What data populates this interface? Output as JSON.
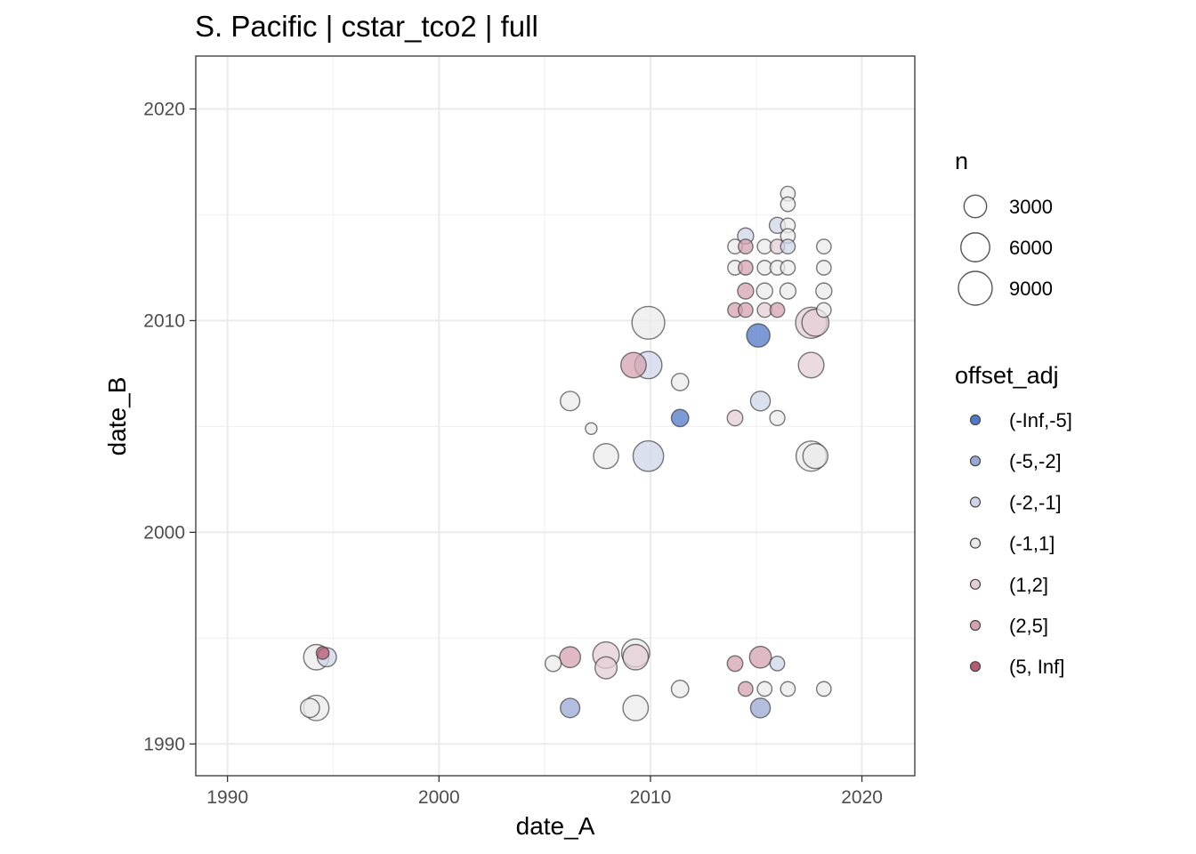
{
  "chart_data": {
    "type": "scatter",
    "title": "S. Pacific | cstar_tco2 | full",
    "xlabel": "date_A",
    "ylabel": "date_B",
    "xlim": [
      1988.5,
      2022.5
    ],
    "ylim": [
      1988.5,
      2022.5
    ],
    "x_ticks": [
      1990,
      2000,
      2010,
      2020
    ],
    "y_ticks": [
      1990,
      2000,
      2010,
      2020
    ],
    "grid": true,
    "legend_position": "right",
    "legend_size": {
      "title": "n",
      "entries": [
        {
          "label": "3000",
          "value": 3000
        },
        {
          "label": "6000",
          "value": 6000
        },
        {
          "label": "9000",
          "value": 9000
        }
      ]
    },
    "legend_color": {
      "title": "offset_adj",
      "entries": [
        {
          "label": "(-Inf,-5]",
          "color": "#4f78c8"
        },
        {
          "label": "(-5,-2]",
          "color": "#9aa8d3"
        },
        {
          "label": "(-2,-1]",
          "color": "#cfd5e8"
        },
        {
          "label": "(-1,1]",
          "color": "#ebebeb"
        },
        {
          "label": "(1,2]",
          "color": "#e4cfd6"
        },
        {
          "label": "(2,5]",
          "color": "#d4a3b0"
        },
        {
          "label": "(5, Inf]",
          "color": "#b45a72"
        }
      ]
    },
    "points": [
      {
        "x": 1994.2,
        "y": 1994.1,
        "n": 4200,
        "cls": "(-1,1]"
      },
      {
        "x": 1994.7,
        "y": 1994.1,
        "n": 1800,
        "cls": "(-2,-1]"
      },
      {
        "x": 1994.5,
        "y": 1994.3,
        "n": 400,
        "cls": "(5, Inf]"
      },
      {
        "x": 1994.2,
        "y": 1991.7,
        "n": 4200,
        "cls": "(-1,1]"
      },
      {
        "x": 1993.9,
        "y": 1991.7,
        "n": 1800,
        "cls": "(-1,1]"
      },
      {
        "x": 2005.4,
        "y": 1993.8,
        "n": 1000,
        "cls": "(-1,1]"
      },
      {
        "x": 2006.2,
        "y": 1994.1,
        "n": 2400,
        "cls": "(2,5]"
      },
      {
        "x": 2007.9,
        "y": 1994.2,
        "n": 4700,
        "cls": "(1,2]"
      },
      {
        "x": 2007.9,
        "y": 1993.6,
        "n": 2800,
        "cls": "(1,2]"
      },
      {
        "x": 2009.3,
        "y": 1994.3,
        "n": 5500,
        "cls": "(-1,1]"
      },
      {
        "x": 2009.3,
        "y": 1994.1,
        "n": 4200,
        "cls": "(1,2]"
      },
      {
        "x": 2006.2,
        "y": 1991.7,
        "n": 1900,
        "cls": "(-5,-2]"
      },
      {
        "x": 2009.3,
        "y": 1991.7,
        "n": 4200,
        "cls": "(-1,1]"
      },
      {
        "x": 2011.4,
        "y": 1992.6,
        "n": 1300,
        "cls": "(-1,1]"
      },
      {
        "x": 2014.0,
        "y": 1993.8,
        "n": 900,
        "cls": "(2,5]"
      },
      {
        "x": 2015.2,
        "y": 1994.1,
        "n": 2700,
        "cls": "(2,5]"
      },
      {
        "x": 2016.0,
        "y": 1993.8,
        "n": 700,
        "cls": "(-2,-1]"
      },
      {
        "x": 2014.5,
        "y": 1992.6,
        "n": 700,
        "cls": "(2,5]"
      },
      {
        "x": 2015.4,
        "y": 1992.6,
        "n": 700,
        "cls": "(-1,1]"
      },
      {
        "x": 2016.5,
        "y": 1992.6,
        "n": 700,
        "cls": "(-1,1]"
      },
      {
        "x": 2018.2,
        "y": 1992.6,
        "n": 700,
        "cls": "(-1,1]"
      },
      {
        "x": 2015.2,
        "y": 1991.7,
        "n": 2000,
        "cls": "(-5,-2]"
      },
      {
        "x": 2006.2,
        "y": 2006.2,
        "n": 1900,
        "cls": "(-1,1]"
      },
      {
        "x": 2007.2,
        "y": 2004.9,
        "n": 250,
        "cls": "(-1,1]"
      },
      {
        "x": 2007.9,
        "y": 2003.6,
        "n": 4000,
        "cls": "(-1,1]"
      },
      {
        "x": 2009.9,
        "y": 2003.6,
        "n": 6900,
        "cls": "(-2,-1]"
      },
      {
        "x": 2009.9,
        "y": 2009.9,
        "n": 8300,
        "cls": "(-1,1]"
      },
      {
        "x": 2009.2,
        "y": 2007.9,
        "n": 4200,
        "cls": "(2,5]"
      },
      {
        "x": 2009.9,
        "y": 2007.9,
        "n": 5100,
        "cls": "(-2,-1]"
      },
      {
        "x": 2011.4,
        "y": 2007.1,
        "n": 1300,
        "cls": "(-1,1]"
      },
      {
        "x": 2011.4,
        "y": 2005.4,
        "n": 1300,
        "cls": "(-Inf,-5]"
      },
      {
        "x": 2014.0,
        "y": 2005.4,
        "n": 900,
        "cls": "(1,2]"
      },
      {
        "x": 2015.2,
        "y": 2006.2,
        "n": 2000,
        "cls": "(-2,-1]"
      },
      {
        "x": 2016.0,
        "y": 2005.4,
        "n": 800,
        "cls": "(-1,1]"
      },
      {
        "x": 2015.1,
        "y": 2009.3,
        "n": 3300,
        "cls": "(-Inf,-5]"
      },
      {
        "x": 2017.6,
        "y": 2009.9,
        "n": 7300,
        "cls": "(1,2]"
      },
      {
        "x": 2017.6,
        "y": 2007.9,
        "n": 4300,
        "cls": "(1,2]"
      },
      {
        "x": 2017.6,
        "y": 2003.6,
        "n": 6700,
        "cls": "(-1,1]"
      },
      {
        "x": 2017.8,
        "y": 2003.6,
        "n": 4000,
        "cls": "(-1,1]"
      },
      {
        "x": 2014.0,
        "y": 2013.5,
        "n": 700,
        "cls": "(-1,1]"
      },
      {
        "x": 2014.5,
        "y": 2014.0,
        "n": 1000,
        "cls": "(-2,-1]"
      },
      {
        "x": 2014.5,
        "y": 2013.5,
        "n": 700,
        "cls": "(2,5]"
      },
      {
        "x": 2015.4,
        "y": 2013.5,
        "n": 700,
        "cls": "(-1,1]"
      },
      {
        "x": 2016.0,
        "y": 2014.5,
        "n": 1000,
        "cls": "(-2,-1]"
      },
      {
        "x": 2016.0,
        "y": 2013.5,
        "n": 700,
        "cls": "(1,2]"
      },
      {
        "x": 2016.5,
        "y": 2016.0,
        "n": 700,
        "cls": "(-1,1]"
      },
      {
        "x": 2016.5,
        "y": 2015.5,
        "n": 700,
        "cls": "(-1,1]"
      },
      {
        "x": 2016.5,
        "y": 2014.5,
        "n": 700,
        "cls": "(-1,1]"
      },
      {
        "x": 2016.5,
        "y": 2014.0,
        "n": 700,
        "cls": "(-1,1]"
      },
      {
        "x": 2016.5,
        "y": 2013.5,
        "n": 700,
        "cls": "(-2,-1]"
      },
      {
        "x": 2018.2,
        "y": 2013.5,
        "n": 700,
        "cls": "(-1,1]"
      },
      {
        "x": 2014.0,
        "y": 2012.5,
        "n": 700,
        "cls": "(-1,1]"
      },
      {
        "x": 2014.5,
        "y": 2012.5,
        "n": 700,
        "cls": "(2,5]"
      },
      {
        "x": 2015.4,
        "y": 2012.5,
        "n": 700,
        "cls": "(-1,1]"
      },
      {
        "x": 2016.0,
        "y": 2012.5,
        "n": 700,
        "cls": "(-1,1]"
      },
      {
        "x": 2016.5,
        "y": 2012.5,
        "n": 700,
        "cls": "(-1,1]"
      },
      {
        "x": 2018.2,
        "y": 2012.5,
        "n": 700,
        "cls": "(-1,1]"
      },
      {
        "x": 2014.5,
        "y": 2011.4,
        "n": 1000,
        "cls": "(2,5]"
      },
      {
        "x": 2015.4,
        "y": 2011.4,
        "n": 1000,
        "cls": "(-1,1]"
      },
      {
        "x": 2016.5,
        "y": 2011.4,
        "n": 1000,
        "cls": "(-1,1]"
      },
      {
        "x": 2018.2,
        "y": 2011.4,
        "n": 1000,
        "cls": "(-1,1]"
      },
      {
        "x": 2014.0,
        "y": 2010.5,
        "n": 700,
        "cls": "(2,5]"
      },
      {
        "x": 2014.5,
        "y": 2010.5,
        "n": 700,
        "cls": "(2,5]"
      },
      {
        "x": 2015.4,
        "y": 2010.5,
        "n": 700,
        "cls": "(1,2]"
      },
      {
        "x": 2016.0,
        "y": 2010.5,
        "n": 700,
        "cls": "(2,5]"
      },
      {
        "x": 2018.2,
        "y": 2010.5,
        "n": 700,
        "cls": "(-1,1]"
      },
      {
        "x": 2017.8,
        "y": 2009.9,
        "n": 5000,
        "cls": "(1,2]"
      }
    ]
  }
}
